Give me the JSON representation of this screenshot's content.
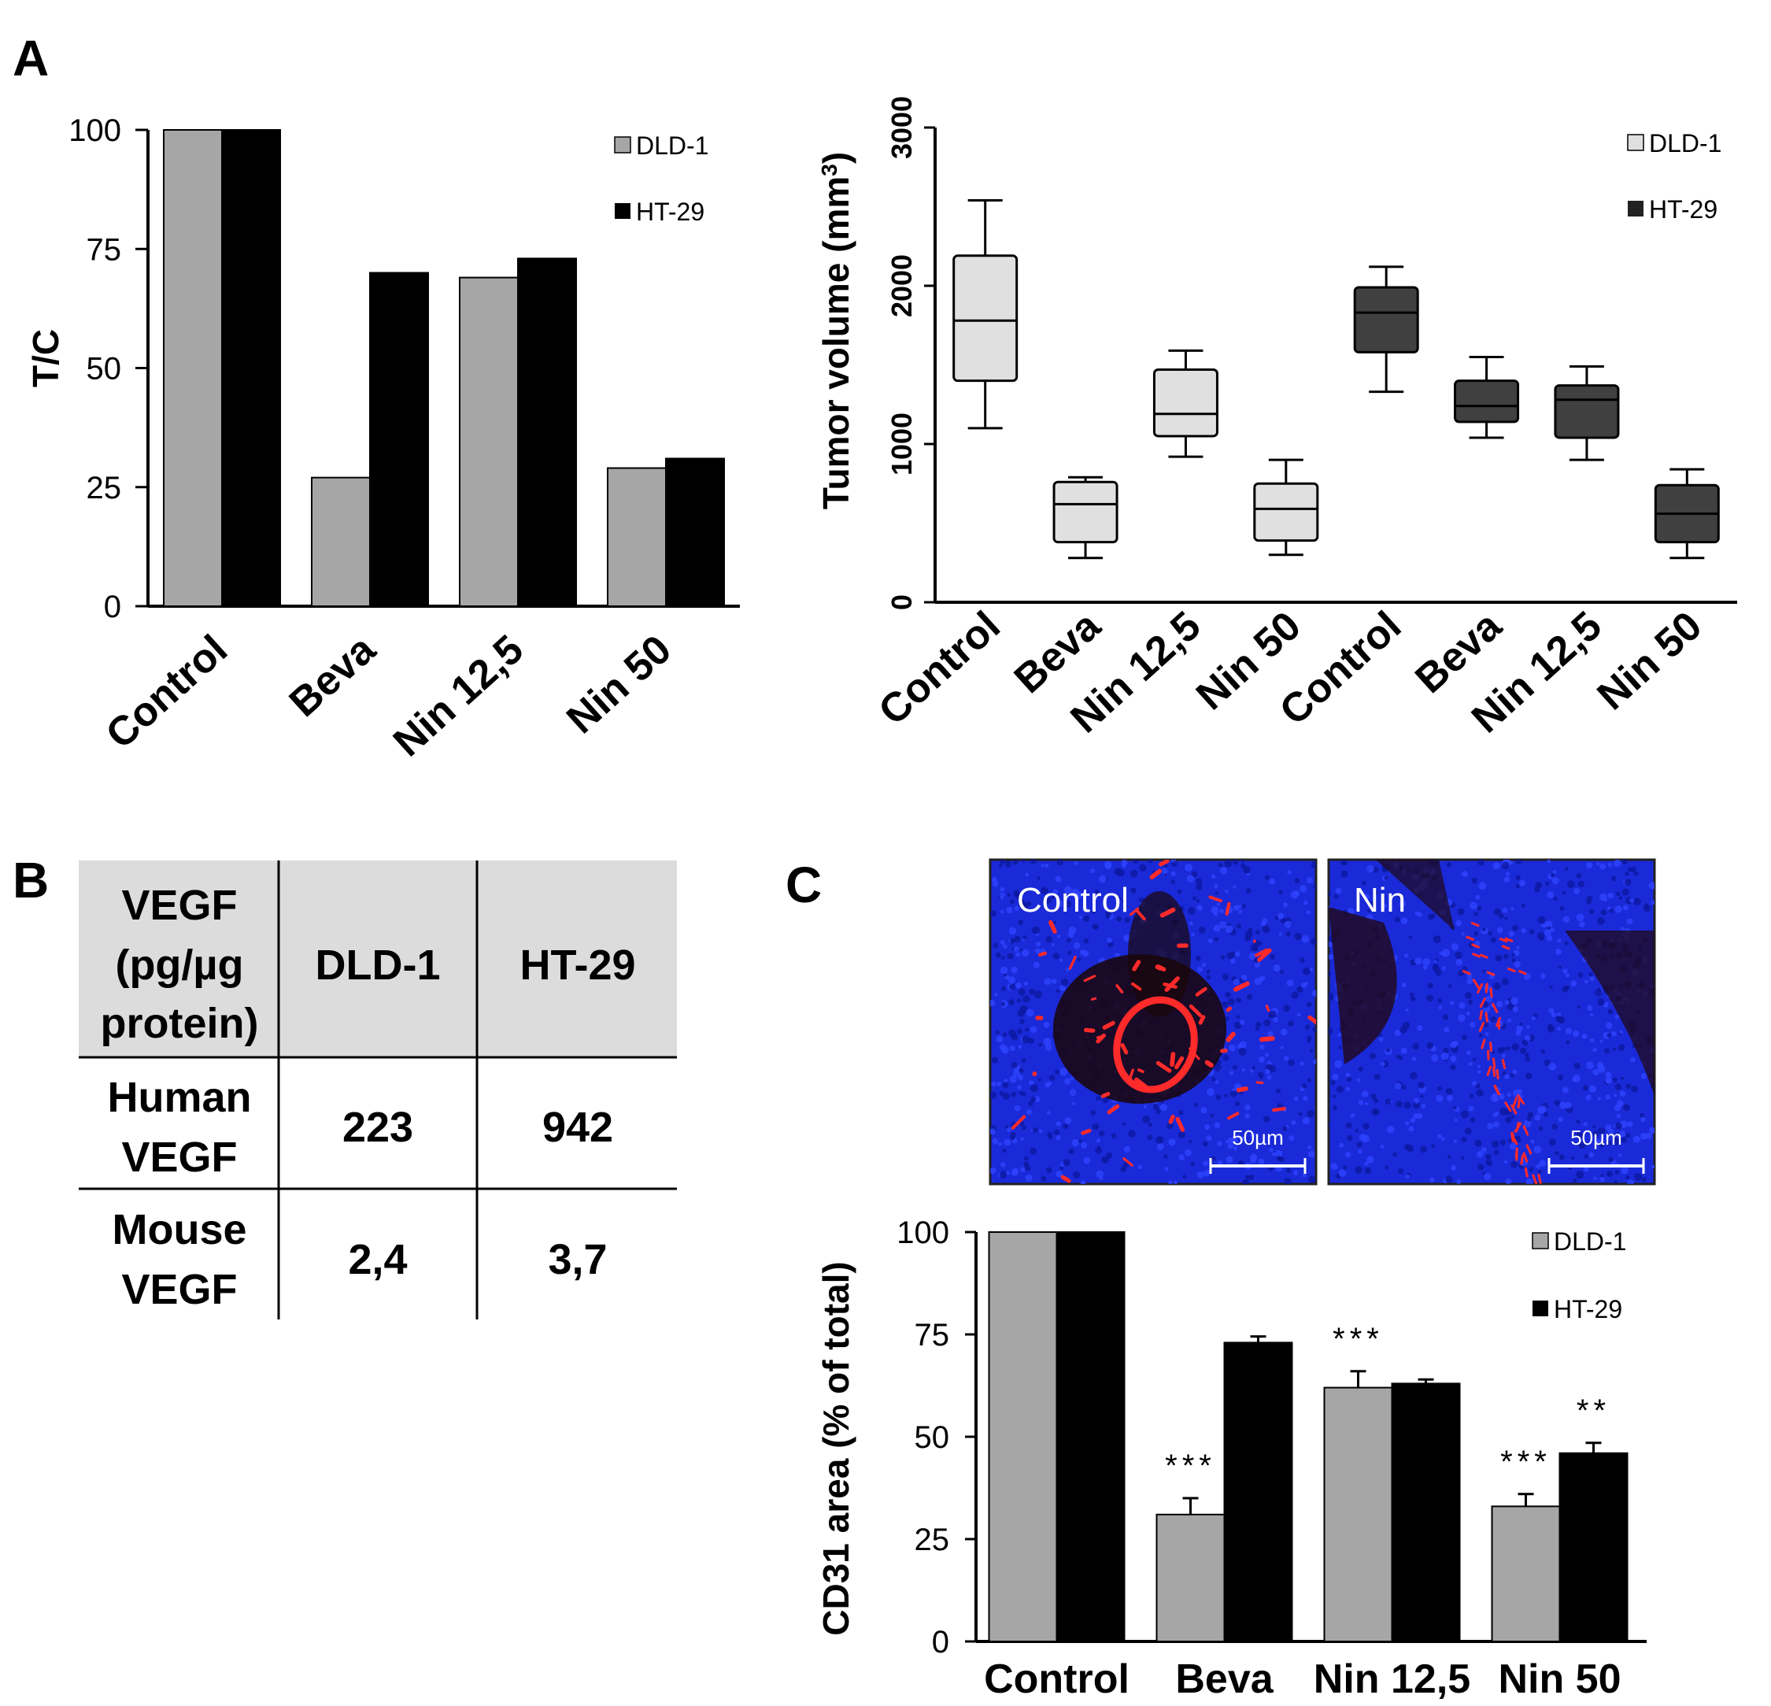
{
  "panels": {
    "a": "A",
    "b": "B",
    "c": "C"
  },
  "colors": {
    "dld1": "#a6a6a6",
    "ht29": "#000000",
    "box_light": "#e0e0e0",
    "box_dark": "#404040",
    "table_header": "#dcdcdc",
    "micro_bg": "#1a2ad8",
    "micro_red": "#ff2a2a"
  },
  "chart_data": [
    {
      "id": "tc",
      "type": "bar",
      "title": "",
      "ylabel": "T/C",
      "xlabel": "",
      "ylim": [
        0,
        100
      ],
      "yticks": [
        0,
        25,
        50,
        75,
        100
      ],
      "categories": [
        "Control",
        "Beva",
        "Nin 12,5",
        "Nin 50"
      ],
      "series": [
        {
          "name": "DLD-1",
          "values": [
            100,
            27,
            69,
            29
          ]
        },
        {
          "name": "HT-29",
          "values": [
            100,
            70,
            73,
            31
          ]
        }
      ],
      "legend": "top-right"
    },
    {
      "id": "tumor",
      "type": "box",
      "ylabel": "Tumor volume (mm",
      "ylabel_sup": "3",
      "ylabel_close": ")",
      "ylim": [
        0,
        3000
      ],
      "yticks": [
        0,
        1000,
        2000,
        3000
      ],
      "categories": [
        "Control",
        "Beva",
        "Nin 12,5",
        "Nin 50",
        "Control",
        "Beva",
        "Nin 12,5",
        "Nin 50"
      ],
      "series_names": [
        "DLD-1",
        "HT-29"
      ],
      "boxes": [
        {
          "series": "DLD-1",
          "min": 1100,
          "q1": 1400,
          "median": 1780,
          "q3": 2190,
          "max": 2540
        },
        {
          "series": "DLD-1",
          "min": 280,
          "q1": 380,
          "median": 620,
          "q3": 760,
          "max": 790
        },
        {
          "series": "DLD-1",
          "min": 920,
          "q1": 1050,
          "median": 1190,
          "q3": 1470,
          "max": 1590
        },
        {
          "series": "DLD-1",
          "min": 300,
          "q1": 390,
          "median": 590,
          "q3": 750,
          "max": 900
        },
        {
          "series": "HT-29",
          "min": 1330,
          "q1": 1580,
          "median": 1830,
          "q3": 1990,
          "max": 2120
        },
        {
          "series": "HT-29",
          "min": 1040,
          "q1": 1140,
          "median": 1240,
          "q3": 1400,
          "max": 1550
        },
        {
          "series": "HT-29",
          "min": 900,
          "q1": 1040,
          "median": 1280,
          "q3": 1370,
          "max": 1490
        },
        {
          "series": "HT-29",
          "min": 280,
          "q1": 380,
          "median": 560,
          "q3": 740,
          "max": 840
        }
      ],
      "legend": "top-right"
    },
    {
      "id": "cd31",
      "type": "bar",
      "ylabel": "CD31 area (% of total)",
      "ylim": [
        0,
        100
      ],
      "yticks": [
        0,
        25,
        50,
        75,
        100
      ],
      "categories": [
        "Control",
        "Beva",
        "Nin 12,5",
        "Nin 50"
      ],
      "series": [
        {
          "name": "DLD-1",
          "values": [
            100,
            31,
            62,
            33
          ],
          "errors": [
            0,
            4,
            4,
            3
          ],
          "annotations": [
            "",
            "***",
            "***",
            "***"
          ]
        },
        {
          "name": "HT-29",
          "values": [
            100,
            73,
            63,
            46
          ],
          "errors": [
            0,
            1.5,
            1,
            2.5
          ],
          "annotations": [
            "",
            "",
            "",
            "**"
          ]
        }
      ],
      "legend": "top-right"
    }
  ],
  "table": {
    "header": {
      "row_label_lines": [
        "VEGF",
        "(pg/µg",
        "protein)"
      ],
      "col1": "DLD-1",
      "col2": "HT-29"
    },
    "rows": [
      {
        "label_lines": [
          "Human",
          "VEGF"
        ],
        "dld1": "223",
        "ht29": "942"
      },
      {
        "label_lines": [
          "Mouse",
          "VEGF"
        ],
        "dld1": "2,4",
        "ht29": "3,7"
      }
    ]
  },
  "micrographs": [
    {
      "label": "Control",
      "scale": "50µm"
    },
    {
      "label": "Nin",
      "scale": "50µm"
    }
  ]
}
